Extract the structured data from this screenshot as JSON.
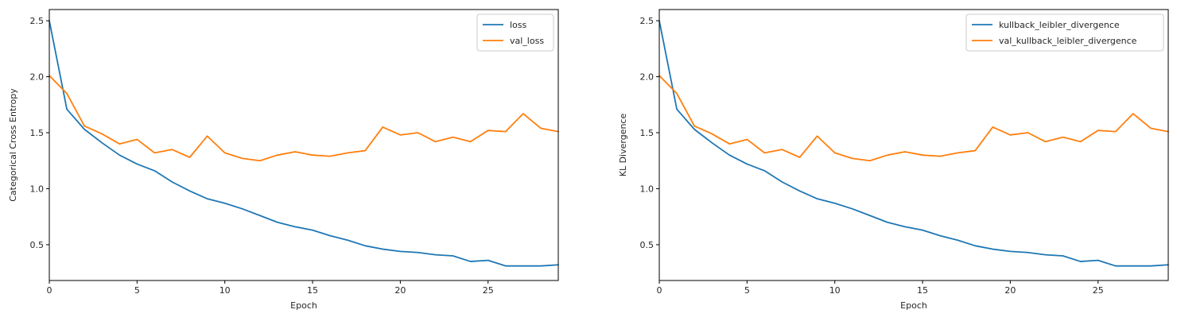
{
  "chart_data": [
    {
      "type": "line",
      "title": "",
      "xlabel": "Epoch",
      "ylabel": "Categorical Cross Entropy",
      "xlim": [
        0,
        29
      ],
      "ylim": [
        0.18,
        2.6
      ],
      "xticks": [
        0,
        5,
        10,
        15,
        20,
        25
      ],
      "yticks": [
        0.5,
        1.0,
        1.5,
        2.0,
        2.5
      ],
      "x": [
        0,
        1,
        2,
        3,
        4,
        5,
        6,
        7,
        8,
        9,
        10,
        11,
        12,
        13,
        14,
        15,
        16,
        17,
        18,
        19,
        20,
        21,
        22,
        23,
        24,
        25,
        26,
        27,
        28,
        29
      ],
      "series": [
        {
          "name": "loss",
          "color": "#1f77b4",
          "values": [
            2.5,
            1.71,
            1.53,
            1.41,
            1.3,
            1.22,
            1.16,
            1.06,
            0.98,
            0.91,
            0.87,
            0.82,
            0.76,
            0.7,
            0.66,
            0.63,
            0.58,
            0.54,
            0.49,
            0.46,
            0.44,
            0.43,
            0.41,
            0.4,
            0.35,
            0.36,
            0.31,
            0.31,
            0.31,
            0.32
          ]
        },
        {
          "name": "val_loss",
          "color": "#ff7f0e",
          "values": [
            2.01,
            1.85,
            1.56,
            1.49,
            1.4,
            1.44,
            1.32,
            1.35,
            1.28,
            1.47,
            1.32,
            1.27,
            1.25,
            1.3,
            1.33,
            1.3,
            1.29,
            1.32,
            1.34,
            1.55,
            1.48,
            1.5,
            1.42,
            1.46,
            1.42,
            1.52,
            1.51,
            1.67,
            1.54,
            1.51
          ]
        }
      ],
      "legend_position": "top-right",
      "grid": false
    },
    {
      "type": "line",
      "title": "",
      "xlabel": "Epoch",
      "ylabel": "KL Divergence",
      "xlim": [
        0,
        29
      ],
      "ylim": [
        0.18,
        2.6
      ],
      "xticks": [
        0,
        5,
        10,
        15,
        20,
        25
      ],
      "yticks": [
        0.5,
        1.0,
        1.5,
        2.0,
        2.5
      ],
      "x": [
        0,
        1,
        2,
        3,
        4,
        5,
        6,
        7,
        8,
        9,
        10,
        11,
        12,
        13,
        14,
        15,
        16,
        17,
        18,
        19,
        20,
        21,
        22,
        23,
        24,
        25,
        26,
        27,
        28,
        29
      ],
      "series": [
        {
          "name": "kullback_leibler_divergence",
          "color": "#1f77b4",
          "values": [
            2.5,
            1.71,
            1.53,
            1.41,
            1.3,
            1.22,
            1.16,
            1.06,
            0.98,
            0.91,
            0.87,
            0.82,
            0.76,
            0.7,
            0.66,
            0.63,
            0.58,
            0.54,
            0.49,
            0.46,
            0.44,
            0.43,
            0.41,
            0.4,
            0.35,
            0.36,
            0.31,
            0.31,
            0.31,
            0.32
          ]
        },
        {
          "name": "val_kullback_leibler_divergence",
          "color": "#ff7f0e",
          "values": [
            2.01,
            1.85,
            1.56,
            1.49,
            1.4,
            1.44,
            1.32,
            1.35,
            1.28,
            1.47,
            1.32,
            1.27,
            1.25,
            1.3,
            1.33,
            1.3,
            1.29,
            1.32,
            1.34,
            1.55,
            1.48,
            1.5,
            1.42,
            1.46,
            1.42,
            1.52,
            1.51,
            1.67,
            1.54,
            1.51
          ]
        }
      ],
      "legend_position": "top-right",
      "grid": false
    }
  ]
}
